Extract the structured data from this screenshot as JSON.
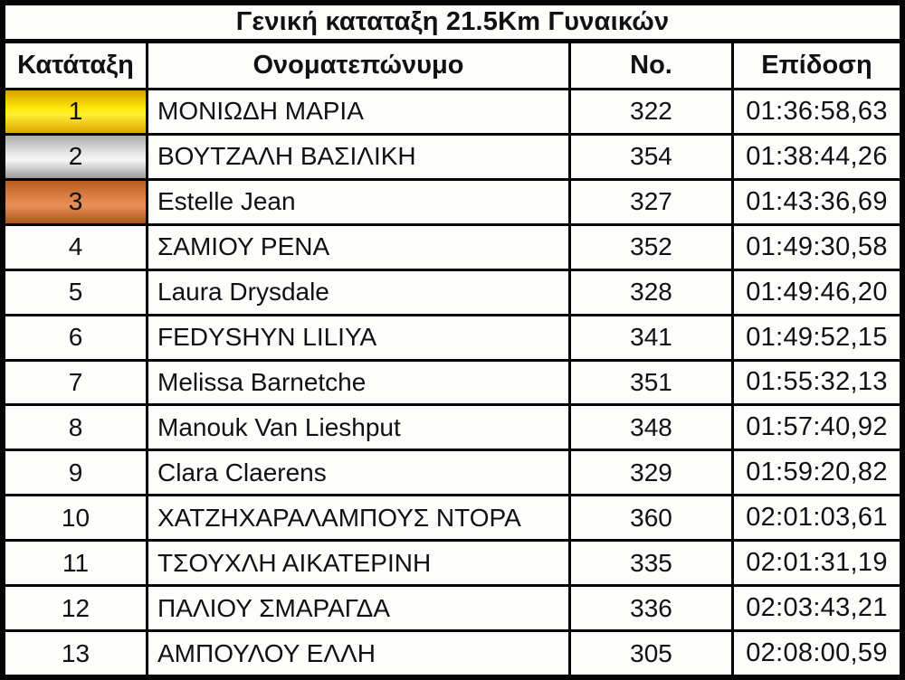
{
  "title": "Γενική καταταξη 21.5Km Γυναικών",
  "columns": {
    "rank": "Κατάταξη",
    "name": "Ονοματεπώνυμο",
    "no": "No.",
    "time": "Επίδοση"
  },
  "rows": [
    {
      "rank": "1",
      "name": "ΜΟΝΙΩΔΗ ΜΑΡΙΑ",
      "no": "322",
      "time": "01:36:58,63",
      "medal": "gold"
    },
    {
      "rank": "2",
      "name": "ΒΟΥΤΖΑΛΗ ΒΑΣΙΛΙΚΗ",
      "no": "354",
      "time": "01:38:44,26",
      "medal": "silver"
    },
    {
      "rank": "3",
      "name": "Estelle Jean",
      "no": "327",
      "time": "01:43:36,69",
      "medal": "bronze"
    },
    {
      "rank": "4",
      "name": "ΣΑΜΙΟΥ ΡΕΝΑ",
      "no": "352",
      "time": "01:49:30,58",
      "medal": null
    },
    {
      "rank": "5",
      "name": "Laura Drysdale",
      "no": "328",
      "time": "01:49:46,20",
      "medal": null
    },
    {
      "rank": "6",
      "name": "FEDYSHYN LILIYA",
      "no": "341",
      "time": "01:49:52,15",
      "medal": null
    },
    {
      "rank": "7",
      "name": "Melissa Barnetche",
      "no": "351",
      "time": "01:55:32,13",
      "medal": null
    },
    {
      "rank": "8",
      "name": "Manouk Van Lieshput",
      "no": "348",
      "time": "01:57:40,92",
      "medal": null
    },
    {
      "rank": "9",
      "name": "Clara Claerens",
      "no": "329",
      "time": "01:59:20,82",
      "medal": null
    },
    {
      "rank": "10",
      "name": "ΧΑΤΖΗΧΑΡΑΛΑΜΠΟΥΣ ΝΤΟΡΑ",
      "no": "360",
      "time": "02:01:03,61",
      "medal": null
    },
    {
      "rank": "11",
      "name": "ΤΣΟΥΧΛΗ ΑΙΚΑΤΕΡΙΝΗ",
      "no": "335",
      "time": "02:01:31,19",
      "medal": null
    },
    {
      "rank": "12",
      "name": "ΠΑΛΙΟΥ ΣΜΑΡΑΓΔΑ",
      "no": "336",
      "time": "02:03:43,21",
      "medal": null
    },
    {
      "rank": "13",
      "name": "ΑΜΠΟΥΛΟΥ ΕΛΛΗ",
      "no": "305",
      "time": "02:08:00,59",
      "medal": null
    }
  ],
  "colors": {
    "border": "#050505",
    "text": "#111111",
    "gold": [
      "#d8a000",
      "#ffe80a",
      "#ffee33",
      "#dca400"
    ],
    "silver": [
      "#ababab",
      "#e8e8e8",
      "#f5f5f5",
      "#9a9a9a"
    ],
    "bronze": [
      "#b85c20",
      "#e0854a",
      "#e89058",
      "#a85318"
    ]
  },
  "chart_data": {
    "type": "table",
    "title": "Γενική καταταξη 21.5Km Γυναικών",
    "columns": [
      "Κατάταξη",
      "Ονοματεπώνυμο",
      "No.",
      "Επίδοση"
    ],
    "rows": [
      [
        "1",
        "ΜΟΝΙΩΔΗ ΜΑΡΙΑ",
        "322",
        "01:36:58,63"
      ],
      [
        "2",
        "ΒΟΥΤΖΑΛΗ ΒΑΣΙΛΙΚΗ",
        "354",
        "01:38:44,26"
      ],
      [
        "3",
        "Estelle Jean",
        "327",
        "01:43:36,69"
      ],
      [
        "4",
        "ΣΑΜΙΟΥ ΡΕΝΑ",
        "352",
        "01:49:30,58"
      ],
      [
        "5",
        "Laura Drysdale",
        "328",
        "01:49:46,20"
      ],
      [
        "6",
        "FEDYSHYN LILIYA",
        "341",
        "01:49:52,15"
      ],
      [
        "7",
        "Melissa Barnetche",
        "351",
        "01:55:32,13"
      ],
      [
        "8",
        "Manouk Van Lieshput",
        "348",
        "01:57:40,92"
      ],
      [
        "9",
        "Clara Claerens",
        "329",
        "01:59:20,82"
      ],
      [
        "10",
        "ΧΑΤΖΗΧΑΡΑΛΑΜΠΟΥΣ ΝΤΟΡΑ",
        "360",
        "02:01:03,61"
      ],
      [
        "11",
        "ΤΣΟΥΧΛΗ ΑΙΚΑΤΕΡΙΝΗ",
        "335",
        "02:01:31,19"
      ],
      [
        "12",
        "ΠΑΛΙΟΥ ΣΜΑΡΑΓΔΑ",
        "336",
        "02:03:43,21"
      ],
      [
        "13",
        "ΑΜΠΟΥΛΟΥ ΕΛΛΗ",
        "305",
        "02:08:00,59"
      ]
    ]
  }
}
